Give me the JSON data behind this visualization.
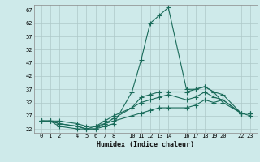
{
  "xlabel": "Humidex (Indice chaleur)",
  "bg_color": "#ceeaea",
  "grid_color": "#adc8c8",
  "line_color": "#1a6b5a",
  "xlim": [
    -0.8,
    23.8
  ],
  "ylim": [
    20.5,
    69
  ],
  "xticks": [
    0,
    1,
    2,
    4,
    5,
    6,
    7,
    8,
    10,
    11,
    12,
    13,
    14,
    16,
    17,
    18,
    19,
    20,
    22,
    23
  ],
  "yticks": [
    22,
    27,
    32,
    37,
    42,
    47,
    52,
    57,
    62,
    67
  ],
  "line1_x": [
    0,
    1,
    2,
    4,
    5,
    6,
    7,
    8,
    10,
    11,
    12,
    13,
    14,
    16,
    17,
    18,
    19,
    20,
    22,
    23
  ],
  "line1_y": [
    25,
    25,
    23,
    22,
    22,
    22,
    23,
    24,
    36,
    48,
    62,
    65,
    68,
    37,
    37,
    38,
    36,
    35,
    28,
    28
  ],
  "line2_x": [
    0,
    1,
    2,
    4,
    5,
    6,
    7,
    8,
    10,
    11,
    12,
    13,
    14,
    16,
    17,
    18,
    19,
    20,
    22,
    23
  ],
  "line2_y": [
    25,
    25,
    24,
    23,
    22,
    22,
    24,
    26,
    30,
    34,
    35,
    36,
    36,
    36,
    37,
    38,
    36,
    32,
    28,
    28
  ],
  "line3_x": [
    0,
    1,
    2,
    4,
    5,
    6,
    7,
    8,
    10,
    11,
    12,
    13,
    14,
    16,
    17,
    18,
    19,
    20,
    22,
    23
  ],
  "line3_y": [
    25,
    25,
    24,
    23,
    22,
    23,
    25,
    27,
    30,
    32,
    33,
    34,
    35,
    33,
    34,
    36,
    34,
    33,
    28,
    28
  ],
  "line4_x": [
    0,
    1,
    2,
    4,
    5,
    6,
    7,
    8,
    10,
    11,
    12,
    13,
    14,
    16,
    17,
    18,
    19,
    20,
    22,
    23
  ],
  "line4_y": [
    25,
    25,
    25,
    24,
    23,
    23,
    24,
    25,
    27,
    28,
    29,
    30,
    30,
    30,
    31,
    33,
    32,
    33,
    28,
    27
  ]
}
